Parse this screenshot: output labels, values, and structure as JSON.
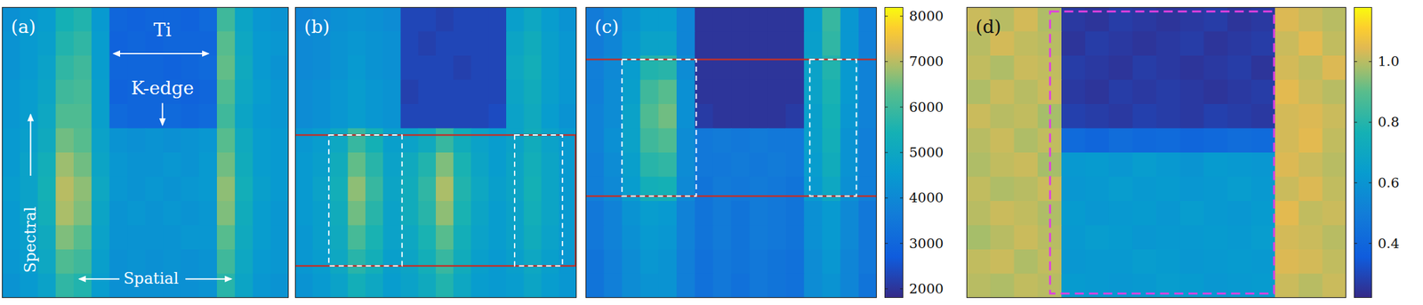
{
  "chart_data": [
    {
      "type": "heatmap",
      "label": "(a)",
      "annotations": [
        "Ti",
        "K-edge",
        "Spectral",
        "Spatial"
      ],
      "zlim": [
        1800,
        8200
      ],
      "cells": [
        [
          4200,
          4400,
          4600,
          5400,
          5600,
          4500,
          3000,
          2900,
          3000,
          3000,
          2900,
          3100,
          6000,
          4900,
          4400,
          4300
        ],
        [
          4300,
          4500,
          4700,
          5600,
          5800,
          4600,
          2900,
          3000,
          2900,
          3000,
          3000,
          3000,
          6300,
          5000,
          4500,
          4400
        ],
        [
          4300,
          4500,
          4800,
          5800,
          6000,
          4600,
          3000,
          3000,
          3000,
          2900,
          3000,
          3100,
          6400,
          5100,
          4500,
          4300
        ],
        [
          4400,
          4600,
          4900,
          6000,
          6100,
          4700,
          2900,
          3000,
          3000,
          3000,
          2900,
          3000,
          6200,
          5000,
          4600,
          4400
        ],
        [
          4400,
          4600,
          5000,
          6200,
          6200,
          4700,
          3100,
          3000,
          3000,
          3100,
          3000,
          3100,
          6000,
          4900,
          4500,
          4400
        ],
        [
          4500,
          4700,
          5100,
          6500,
          6300,
          4800,
          4300,
          4200,
          4300,
          4200,
          4300,
          4400,
          6300,
          5100,
          4600,
          4500
        ],
        [
          4500,
          4800,
          5300,
          6800,
          6500,
          4900,
          4400,
          4300,
          4300,
          4400,
          4300,
          4500,
          6500,
          5200,
          4600,
          4500
        ],
        [
          4600,
          4800,
          5400,
          7000,
          6700,
          5000,
          4400,
          4300,
          4400,
          4300,
          4400,
          4500,
          6700,
          5300,
          4700,
          4500
        ],
        [
          4500,
          4800,
          5300,
          6900,
          6600,
          4900,
          4300,
          4400,
          4300,
          4400,
          4300,
          4400,
          6600,
          5200,
          4600,
          4400
        ],
        [
          4500,
          4700,
          5100,
          6600,
          6300,
          4800,
          4300,
          4300,
          4300,
          4300,
          4400,
          4400,
          6300,
          5100,
          4600,
          4400
        ],
        [
          4400,
          4600,
          5000,
          6200,
          6000,
          4700,
          4200,
          4300,
          4200,
          4300,
          4200,
          4300,
          6000,
          5000,
          4500,
          4400
        ],
        [
          4300,
          4500,
          4800,
          5800,
          5600,
          4600,
          4200,
          4200,
          4200,
          4200,
          4200,
          4300,
          5700,
          4900,
          4400,
          4300
        ]
      ]
    },
    {
      "type": "heatmap",
      "label": "(b)",
      "zlim": [
        1800,
        8200
      ],
      "cells": [
        [
          3900,
          4000,
          4200,
          4300,
          4200,
          4100,
          2300,
          2300,
          2200,
          2300,
          2300,
          2300,
          4700,
          5000,
          4600,
          4300
        ],
        [
          4000,
          4100,
          4300,
          4400,
          4300,
          4200,
          2300,
          2200,
          2300,
          2300,
          2300,
          2300,
          4900,
          5200,
          4700,
          4400
        ],
        [
          4000,
          4100,
          4300,
          4500,
          4300,
          4200,
          2300,
          2300,
          2300,
          2200,
          2300,
          2300,
          5000,
          5300,
          4700,
          4400
        ],
        [
          4100,
          4200,
          4400,
          4600,
          4400,
          4300,
          2200,
          2300,
          2300,
          2300,
          2300,
          2300,
          4900,
          5200,
          4700,
          4400
        ],
        [
          4100,
          4200,
          4400,
          4600,
          4400,
          4300,
          2300,
          2300,
          2300,
          2300,
          2300,
          2400,
          4800,
          5100,
          4600,
          4300
        ],
        [
          4400,
          4600,
          5000,
          5900,
          5400,
          4700,
          4800,
          5100,
          5900,
          5200,
          4800,
          4600,
          4800,
          5200,
          4800,
          4500
        ],
        [
          4500,
          4700,
          5200,
          6400,
          5700,
          4800,
          5100,
          5600,
          6600,
          5500,
          4900,
          4600,
          4900,
          5300,
          4900,
          4500
        ],
        [
          4500,
          4800,
          5300,
          6700,
          5900,
          4900,
          5200,
          5800,
          6900,
          5600,
          5000,
          4700,
          4900,
          5400,
          4900,
          4500
        ],
        [
          4500,
          4700,
          5200,
          6500,
          5700,
          4800,
          5200,
          5700,
          6700,
          5500,
          4900,
          4600,
          4800,
          5300,
          4900,
          4500
        ],
        [
          4400,
          4700,
          5100,
          6100,
          5500,
          4800,
          5000,
          5500,
          6300,
          5300,
          4800,
          4600,
          4800,
          5200,
          4800,
          4500
        ],
        [
          4400,
          4600,
          5000,
          5700,
          5300,
          4700,
          4900,
          5300,
          5900,
          5200,
          4700,
          4500,
          4700,
          5000,
          4700,
          4400
        ],
        [
          4300,
          4500,
          4800,
          5300,
          5000,
          4600,
          4800,
          5100,
          5600,
          5000,
          4600,
          4500,
          4600,
          4900,
          4600,
          4400
        ]
      ]
    },
    {
      "type": "heatmap",
      "label": "(c)",
      "zlim": [
        1800,
        8200
      ],
      "colorbar_ticks": [
        2000,
        3000,
        4000,
        5000,
        6000,
        7000,
        8000
      ],
      "cells": [
        [
          3600,
          3900,
          4300,
          4600,
          4600,
          3900,
          2000,
          2000,
          2000,
          2000,
          2000,
          2000,
          4600,
          5900,
          4400,
          3700
        ],
        [
          3600,
          3900,
          4400,
          4800,
          4800,
          3900,
          2000,
          2000,
          2000,
          2000,
          2000,
          2000,
          4700,
          5800,
          4400,
          3700
        ],
        [
          3700,
          4000,
          4600,
          5600,
          5700,
          4100,
          2000,
          2000,
          2000,
          2000,
          2000,
          2000,
          4800,
          5600,
          4500,
          3800
        ],
        [
          3700,
          4100,
          4700,
          6000,
          6300,
          4200,
          2000,
          2000,
          2000,
          2000,
          2000,
          2000,
          4800,
          5500,
          4500,
          3800
        ],
        [
          3800,
          4100,
          4800,
          6200,
          6500,
          4200,
          2100,
          2000,
          2000,
          2000,
          2000,
          2100,
          4700,
          5400,
          4400,
          3800
        ],
        [
          3800,
          4200,
          4800,
          6000,
          6200,
          4100,
          3500,
          3600,
          3500,
          3600,
          3500,
          3500,
          4700,
          5300,
          4300,
          3700
        ],
        [
          3700,
          4100,
          4700,
          5700,
          5800,
          4100,
          3500,
          3500,
          3600,
          3500,
          3600,
          3500,
          4600,
          5200,
          4300,
          3700
        ],
        [
          3700,
          4000,
          4600,
          5300,
          5400,
          4000,
          3400,
          3600,
          3500,
          3600,
          3500,
          3400,
          4500,
          5000,
          4200,
          3700
        ],
        [
          3500,
          3800,
          4300,
          4600,
          4500,
          3800,
          3400,
          3600,
          3400,
          3600,
          3500,
          3400,
          4200,
          4500,
          4000,
          3500
        ],
        [
          3500,
          3800,
          4200,
          4500,
          4400,
          3800,
          3400,
          3600,
          3400,
          3600,
          3500,
          3400,
          4200,
          4500,
          4000,
          3500
        ],
        [
          3400,
          3700,
          4100,
          4400,
          4300,
          3700,
          3300,
          3500,
          3400,
          3500,
          3400,
          3300,
          4100,
          4400,
          3900,
          3500
        ],
        [
          3400,
          3700,
          4100,
          4300,
          4300,
          3700,
          3300,
          3500,
          3300,
          3500,
          3400,
          3300,
          4100,
          4300,
          3900,
          3400
        ]
      ]
    },
    {
      "type": "heatmap",
      "label": "(d)",
      "zlim": [
        0.22,
        1.18
      ],
      "colorbar_ticks": [
        0.4,
        0.6,
        0.8,
        {
          "value": 1.0,
          "label": "1.0"
        }
      ],
      "cells": [
        [
          1.02,
          1.0,
          1.03,
          0.99,
          0.26,
          0.25,
          0.27,
          0.26,
          0.25,
          0.26,
          0.27,
          0.25,
          0.26,
          1.04,
          1.02,
          1.0
        ],
        [
          1.0,
          1.03,
          1.01,
          1.0,
          0.25,
          0.27,
          0.26,
          0.25,
          0.26,
          0.27,
          0.25,
          0.26,
          0.27,
          1.02,
          1.05,
          1.01
        ],
        [
          1.01,
          0.99,
          1.02,
          1.01,
          0.27,
          0.26,
          0.25,
          0.27,
          0.26,
          0.25,
          0.26,
          0.27,
          0.25,
          1.03,
          1.01,
          1.04
        ],
        [
          0.99,
          1.02,
          1.0,
          1.02,
          0.26,
          0.25,
          0.27,
          0.26,
          0.27,
          0.26,
          0.25,
          0.26,
          0.27,
          1.05,
          1.02,
          1.0
        ],
        [
          1.02,
          1.0,
          1.01,
          0.98,
          0.28,
          0.27,
          0.26,
          0.28,
          0.27,
          0.26,
          0.28,
          0.27,
          0.26,
          1.03,
          1.04,
          1.02
        ],
        [
          1.0,
          1.02,
          0.99,
          1.01,
          0.42,
          0.4,
          0.43,
          0.41,
          0.42,
          0.4,
          0.41,
          0.43,
          0.42,
          1.03,
          1.05,
          1.01
        ],
        [
          0.99,
          1.01,
          1.02,
          0.98,
          0.62,
          0.63,
          0.61,
          0.64,
          0.62,
          0.6,
          0.63,
          0.62,
          0.61,
          1.04,
          1.02,
          1.0
        ],
        [
          1.01,
          0.99,
          1.0,
          1.02,
          0.61,
          0.62,
          0.64,
          0.62,
          0.63,
          0.61,
          0.62,
          0.64,
          0.62,
          1.02,
          1.04,
          1.01
        ],
        [
          1.0,
          1.02,
          1.01,
          0.99,
          0.63,
          0.61,
          0.62,
          0.63,
          0.61,
          0.64,
          0.62,
          0.61,
          0.63,
          1.05,
          1.01,
          1.02
        ],
        [
          0.98,
          1.0,
          1.02,
          1.0,
          0.62,
          0.64,
          0.63,
          0.61,
          0.62,
          0.62,
          0.63,
          0.62,
          0.64,
          1.03,
          1.02,
          1.0
        ],
        [
          1.01,
          1.02,
          0.99,
          1.01,
          0.61,
          0.62,
          0.62,
          0.64,
          0.63,
          0.61,
          0.62,
          0.63,
          0.62,
          1.04,
          1.03,
          1.01
        ],
        [
          1.0,
          0.99,
          1.01,
          1.0,
          0.63,
          0.62,
          0.61,
          0.62,
          0.64,
          0.63,
          0.61,
          0.62,
          0.63,
          1.02,
          1.0,
          1.02
        ]
      ]
    }
  ]
}
